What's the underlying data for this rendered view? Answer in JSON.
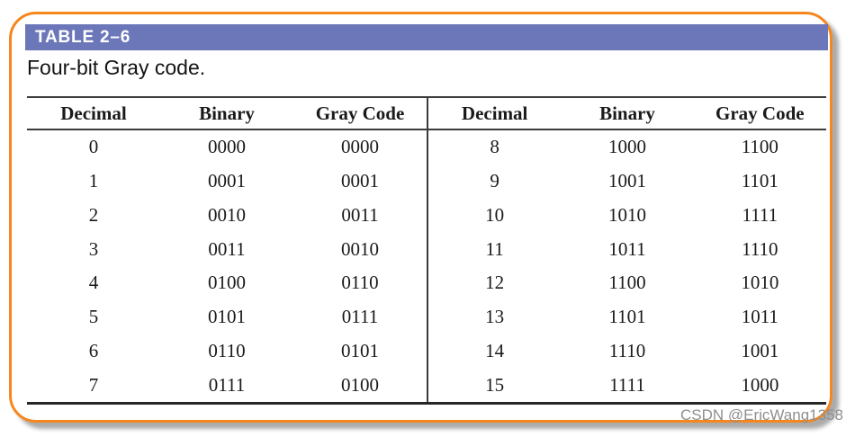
{
  "header": {
    "table_label": "TABLE 2–6",
    "caption": "Four-bit Gray code."
  },
  "colors": {
    "title_bar_purple": "#6b77b8",
    "frame_border_orange": "#f6871f",
    "rule_dark": "#3b3b3b",
    "shadow_gray": "#ababab",
    "watermark_gray": "#8f8f8f"
  },
  "table": {
    "headers": [
      "Decimal",
      "Binary",
      "Gray Code"
    ],
    "left_rows": [
      [
        "0",
        "0000",
        "0000"
      ],
      [
        "1",
        "0001",
        "0001"
      ],
      [
        "2",
        "0010",
        "0011"
      ],
      [
        "3",
        "0011",
        "0010"
      ],
      [
        "4",
        "0100",
        "0110"
      ],
      [
        "5",
        "0101",
        "0111"
      ],
      [
        "6",
        "0110",
        "0101"
      ],
      [
        "7",
        "0111",
        "0100"
      ]
    ],
    "right_rows": [
      [
        "8",
        "1000",
        "1100"
      ],
      [
        "9",
        "1001",
        "1101"
      ],
      [
        "10",
        "1010",
        "1111"
      ],
      [
        "11",
        "1011",
        "1110"
      ],
      [
        "12",
        "1100",
        "1010"
      ],
      [
        "13",
        "1101",
        "1011"
      ],
      [
        "14",
        "1110",
        "1001"
      ],
      [
        "15",
        "1111",
        "1000"
      ]
    ]
  },
  "watermark": {
    "text": "CSDN @EricWang1358"
  }
}
